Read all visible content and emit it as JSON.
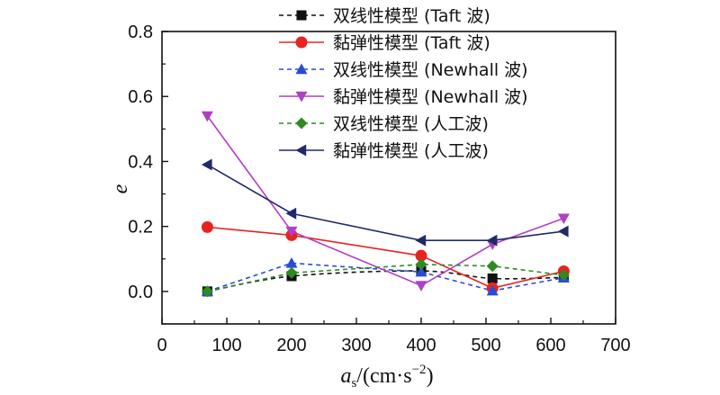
{
  "chart_data": {
    "type": "line",
    "title": "",
    "xlabel": {
      "main": "a",
      "sub": "s",
      "rest": "/(cm·s",
      "sup": "−2",
      "close": ")"
    },
    "ylabel": "e",
    "xlim": [
      0,
      700
    ],
    "ylim": [
      -0.1,
      0.8
    ],
    "xticks": [
      0,
      100,
      200,
      300,
      400,
      500,
      600,
      700
    ],
    "yticks": [
      0.0,
      0.2,
      0.4,
      0.6,
      0.8
    ],
    "xtick_labels": [
      "0",
      "100",
      "200",
      "300",
      "400",
      "500",
      "600",
      "700"
    ],
    "ytick_labels": [
      "0.0",
      "0.2",
      "0.4",
      "0.6",
      "0.8"
    ],
    "grid": false,
    "legend_position": "top-right",
    "series": [
      {
        "name": "双线性模型 (Taft 波)",
        "color": "#111111",
        "dash": "dashed",
        "marker": "square",
        "curve": true,
        "x": [
          70,
          200,
          400,
          510,
          620
        ],
        "y": [
          0.0,
          0.047,
          0.063,
          0.04,
          0.043
        ]
      },
      {
        "name": "黏弹性模型 (Taft 波)",
        "color": "#e8231f",
        "dash": "solid",
        "marker": "circle",
        "curve": false,
        "x": [
          70,
          200,
          400,
          510,
          620
        ],
        "y": [
          0.198,
          0.173,
          0.11,
          0.01,
          0.062
        ]
      },
      {
        "name": "双线性模型 (Newhall 波)",
        "color": "#2a4bd7",
        "dash": "dashed",
        "marker": "triangle-up",
        "curve": false,
        "x": [
          70,
          200,
          400,
          510,
          620
        ],
        "y": [
          0.0,
          0.087,
          0.06,
          0.002,
          0.042
        ]
      },
      {
        "name": "黏弹性模型 (Newhall 波)",
        "color": "#b13fc3",
        "dash": "solid",
        "marker": "triangle-down",
        "curve": false,
        "x": [
          70,
          200,
          400,
          510,
          620
        ],
        "y": [
          0.54,
          0.185,
          0.018,
          0.145,
          0.225
        ]
      },
      {
        "name": "双线性模型 (人工波)",
        "color": "#2e8b22",
        "dash": "dashed",
        "marker": "diamond",
        "curve": false,
        "x": [
          70,
          200,
          400,
          510,
          620
        ],
        "y": [
          0.0,
          0.057,
          0.083,
          0.078,
          0.05
        ]
      },
      {
        "name": "黏弹性模型 (人工波)",
        "color": "#1f2a6b",
        "dash": "solid",
        "marker": "triangle-left",
        "curve": false,
        "x": [
          70,
          200,
          400,
          510,
          620
        ],
        "y": [
          0.39,
          0.24,
          0.157,
          0.157,
          0.185
        ]
      }
    ]
  }
}
